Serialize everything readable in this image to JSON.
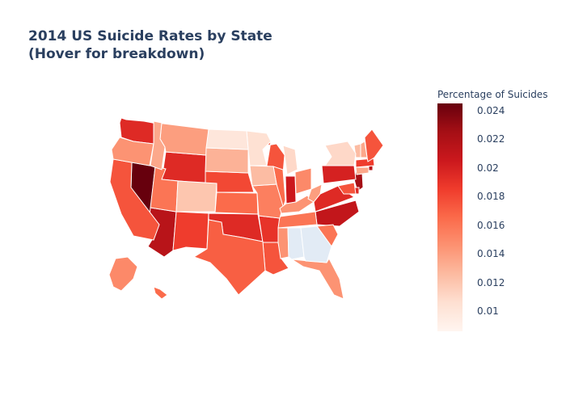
{
  "title_line1": "2014 US Suicide Rates by State",
  "title_line2": "(Hover for breakdown)",
  "colorbar": {
    "title": "Percentage of Suicides",
    "min": 0.0086,
    "max": 0.0245,
    "ticks": [
      "0.01",
      "0.012",
      "0.014",
      "0.016",
      "0.018",
      "0.02",
      "0.022",
      "0.024"
    ],
    "tick_values": [
      0.01,
      0.012,
      0.014,
      0.016,
      0.018,
      0.02,
      0.022,
      0.024
    ],
    "colors": [
      "#fff5f0",
      "#fee0d2",
      "#fcbba1",
      "#fc9272",
      "#fb6a4a",
      "#ef3b2c",
      "#cb181d",
      "#a50f15",
      "#67000d"
    ]
  },
  "chart_data": {
    "type": "heatmap",
    "map": "usa-states-choropleth",
    "states": [
      {
        "state": "NV",
        "value": 0.0245
      },
      {
        "state": "AZ",
        "value": 0.0215
      },
      {
        "state": "NJ",
        "value": 0.0225
      },
      {
        "state": "RI",
        "value": 0.0215
      },
      {
        "state": "NC",
        "value": 0.021
      },
      {
        "state": "IN",
        "value": 0.0205
      },
      {
        "state": "PA",
        "value": 0.02
      },
      {
        "state": "WA",
        "value": 0.0195
      },
      {
        "state": "WY",
        "value": 0.0195
      },
      {
        "state": "VA",
        "value": 0.0195
      },
      {
        "state": "DE",
        "value": 0.0195
      },
      {
        "state": "OK",
        "value": 0.0195
      },
      {
        "state": "AR",
        "value": 0.019
      },
      {
        "state": "NM",
        "value": 0.0185
      },
      {
        "state": "NE",
        "value": 0.018
      },
      {
        "state": "MA",
        "value": 0.0185
      },
      {
        "state": "CA",
        "value": 0.0175
      },
      {
        "state": "WI",
        "value": 0.0175
      },
      {
        "state": "ME",
        "value": 0.0175
      },
      {
        "state": "MD",
        "value": 0.0175
      },
      {
        "state": "LA",
        "value": 0.0175
      },
      {
        "state": "TX",
        "value": 0.017
      },
      {
        "state": "IL",
        "value": 0.0165
      },
      {
        "state": "KS",
        "value": 0.0165
      },
      {
        "state": "HI",
        "value": 0.0165
      },
      {
        "state": "TN",
        "value": 0.016
      },
      {
        "state": "UT",
        "value": 0.016
      },
      {
        "state": "SC",
        "value": 0.016
      },
      {
        "state": "MO",
        "value": 0.0155
      },
      {
        "state": "OH",
        "value": 0.015
      },
      {
        "state": "AK",
        "value": 0.015
      },
      {
        "state": "MS",
        "value": 0.0145
      },
      {
        "state": "OR",
        "value": 0.0145
      },
      {
        "state": "FL",
        "value": 0.0145
      },
      {
        "state": "KY",
        "value": 0.0145
      },
      {
        "state": "MT",
        "value": 0.014
      },
      {
        "state": "WV",
        "value": 0.014
      },
      {
        "state": "ID",
        "value": 0.0135
      },
      {
        "state": "NH",
        "value": 0.0135
      },
      {
        "state": "CT",
        "value": 0.0135
      },
      {
        "state": "SD",
        "value": 0.013
      },
      {
        "state": "IA",
        "value": 0.0125
      },
      {
        "state": "VT",
        "value": 0.0125
      },
      {
        "state": "CO",
        "value": 0.012
      },
      {
        "state": "NY",
        "value": 0.011
      },
      {
        "state": "MI",
        "value": 0.011
      },
      {
        "state": "MN",
        "value": 0.0105
      },
      {
        "state": "ND",
        "value": 0.01
      },
      {
        "state": "AL",
        "value": 0.0085
      },
      {
        "state": "GA",
        "value": 0.0085
      }
    ]
  }
}
